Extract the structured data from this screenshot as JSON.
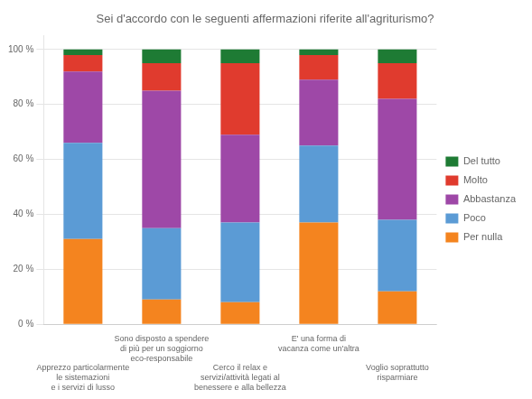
{
  "chart_data": {
    "type": "bar",
    "stacked": true,
    "title": "Sei d'accordo con le seguenti affermazioni riferite all'agriturismo?",
    "categories": [
      "Apprezzo particolarmente\nle sistemazioni\ne i servizi di lusso",
      "Sono disposto a spendere\ndi più per un soggiorno\neco-responsabile",
      "Cerco il relax e\nservizi/attività legati al\nbenessere e alla bellezza",
      "E' una forma di\nvacanza come un'altra",
      "Voglio soprattutto\nrisparmiare"
    ],
    "series": [
      {
        "name": "Per nulla",
        "color": "#F4841F",
        "values": [
          31,
          9,
          8,
          37,
          12
        ]
      },
      {
        "name": "Poco",
        "color": "#5B9BD5",
        "values": [
          35,
          26,
          29,
          28,
          26
        ]
      },
      {
        "name": "Abbastanza",
        "color": "#9E48A7",
        "values": [
          26,
          50,
          32,
          24,
          44
        ]
      },
      {
        "name": "Molto",
        "color": "#E03B2E",
        "values": [
          6,
          10,
          26,
          9,
          13
        ]
      },
      {
        "name": "Del tutto",
        "color": "#1E7B34",
        "values": [
          2,
          5,
          5,
          2,
          5
        ]
      }
    ],
    "ylim": [
      0,
      105
    ],
    "yticks": [
      {
        "value": 0,
        "label": "0 %"
      },
      {
        "value": 20,
        "label": "20 %"
      },
      {
        "value": 40,
        "label": "40 %"
      },
      {
        "value": 60,
        "label": "60 %"
      },
      {
        "value": 80,
        "label": "80 %"
      },
      {
        "value": 100,
        "label": "100 %"
      }
    ],
    "grid": true,
    "legend": "right"
  }
}
